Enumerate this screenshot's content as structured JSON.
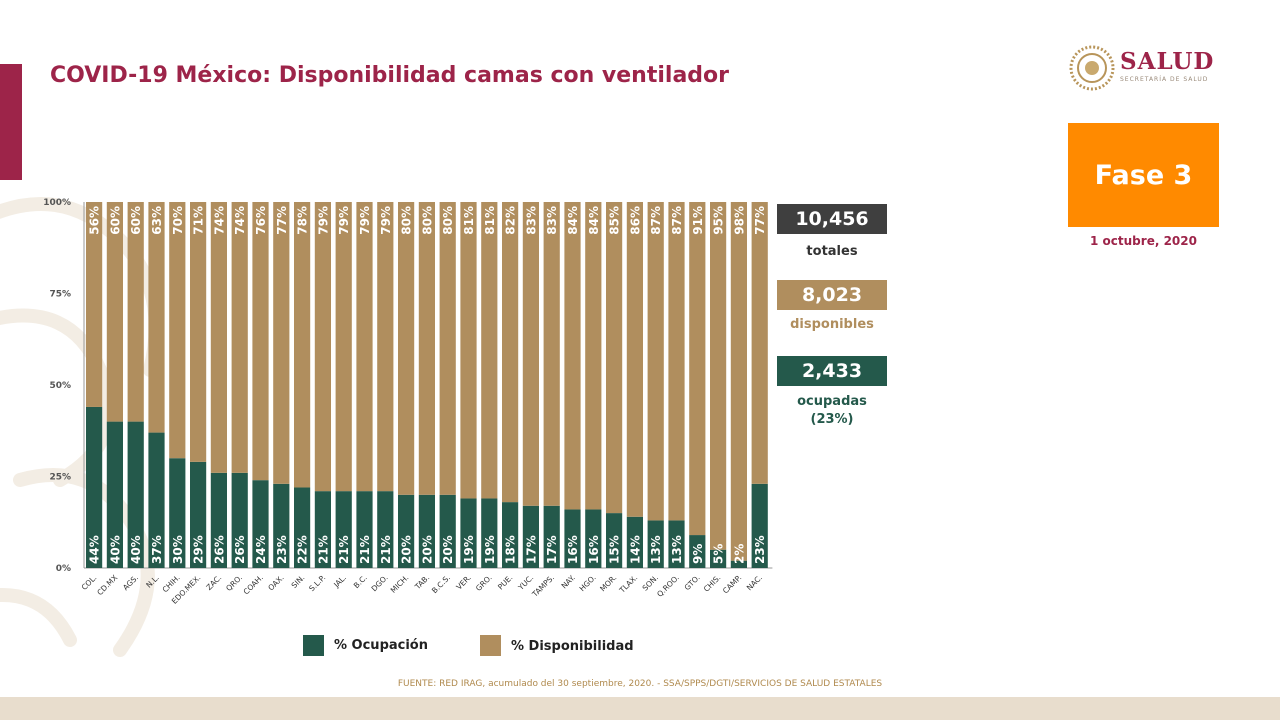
{
  "title": "COVID-19 México: Disponibilidad camas con ventilador",
  "logo": {
    "word": "SALUD",
    "subtitle": "SECRETARÍA DE SALUD"
  },
  "phase": "Fase 3",
  "date": "1 octubre, 2020",
  "stats": {
    "total": {
      "value": "10,456",
      "label": "totales"
    },
    "available": {
      "value": "8,023",
      "label": "disponibles"
    },
    "occupied": {
      "value": "2,433",
      "label": "ocupadas",
      "pct": "(23%)"
    }
  },
  "legend": {
    "occupied": "% Ocupación",
    "available": "% Disponibilidad"
  },
  "source": "FUENTE: RED IRAG, acumulado del 30 septiembre, 2020. -  SSA/SPPS/DGTI/SERVICIOS DE SALUD ESTATALES",
  "colors": {
    "occupied": "#24594b",
    "available": "#b08e5e",
    "accent": "#9d2449",
    "phase": "#ff8a00",
    "total_box": "#3f3f3f"
  },
  "chart_data": {
    "type": "bar",
    "stacked": true,
    "categories": [
      "COL.",
      "CD.MX",
      "AGS.",
      "N.L.",
      "CHIH.",
      "EDO.MEX.",
      "ZAC.",
      "QRO.",
      "COAH.",
      "OAX.",
      "SIN.",
      "S.L.P.",
      "JAL.",
      "B.C.",
      "DGO.",
      "MICH.",
      "TAB.",
      "B.C.S.",
      "VER.",
      "GRO.",
      "PUE.",
      "YUC.",
      "TAMPS.",
      "NAY.",
      "HGO.",
      "MOR.",
      "TLAX.",
      "SON.",
      "Q.ROO.",
      "GTO.",
      "CHIS.",
      "CAMP.",
      "NAC."
    ],
    "series": [
      {
        "name": "% Ocupación",
        "values": [
          44,
          40,
          40,
          37,
          30,
          29,
          26,
          26,
          24,
          23,
          22,
          21,
          21,
          21,
          21,
          20,
          20,
          20,
          19,
          19,
          18,
          17,
          17,
          16,
          16,
          15,
          14,
          13,
          13,
          9,
          5,
          2,
          23
        ]
      },
      {
        "name": "% Disponibilidad",
        "values": [
          56,
          60,
          60,
          63,
          70,
          71,
          74,
          74,
          76,
          77,
          78,
          79,
          79,
          79,
          79,
          80,
          80,
          80,
          81,
          81,
          82,
          83,
          83,
          84,
          84,
          85,
          86,
          87,
          87,
          91,
          95,
          98,
          77
        ]
      }
    ],
    "yticks": [
      "0%",
      "25%",
      "50%",
      "75%",
      "100%"
    ],
    "ylim": [
      0,
      100
    ],
    "grid": false,
    "legend_position": "bottom"
  }
}
